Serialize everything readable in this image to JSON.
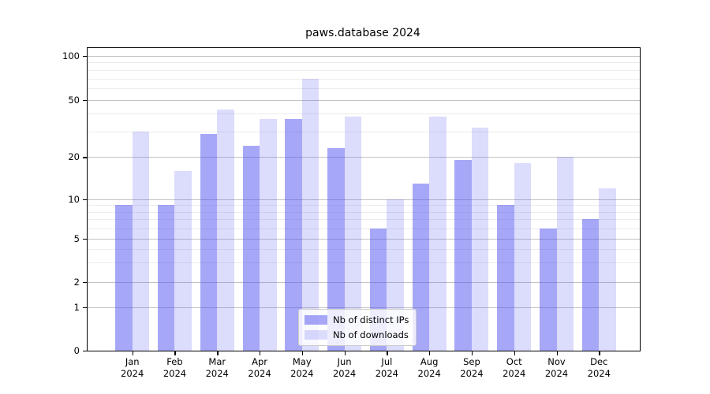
{
  "title": "paws.database 2024",
  "chart_data": {
    "type": "bar",
    "title": "paws.database 2024",
    "categories": [
      "Jan",
      "Feb",
      "Mar",
      "Apr",
      "May",
      "Jun",
      "Jul",
      "Aug",
      "Sep",
      "Oct",
      "Nov",
      "Dec"
    ],
    "category_year": "2024",
    "series": [
      {
        "name": "Nb of distinct IPs",
        "color": "rgba(80,80,240,0.5)",
        "color_on_white": "#a8a8f8",
        "values": [
          9,
          9,
          29,
          24,
          37,
          23,
          6,
          13,
          19,
          9,
          6,
          7
        ]
      },
      {
        "name": "Nb of downloads",
        "color": "rgba(80,80,240,0.2)",
        "color_on_white": "#dcdcfa",
        "values": [
          30,
          16,
          43,
          37,
          70,
          38,
          10,
          38,
          32,
          18,
          20,
          12
        ]
      }
    ],
    "xlabel": "",
    "ylabel": "",
    "yscale": "symlog",
    "yticks": [
      0,
      1,
      2,
      5,
      10,
      20,
      50,
      100
    ],
    "yticks_minor": [
      3,
      4,
      6,
      7,
      8,
      9,
      30,
      40,
      60,
      70,
      80,
      90
    ],
    "ylim": [
      0,
      115
    ],
    "grid": true,
    "legend": {
      "position": "lower center",
      "items": [
        "Nb of distinct IPs",
        "Nb of downloads"
      ]
    }
  }
}
